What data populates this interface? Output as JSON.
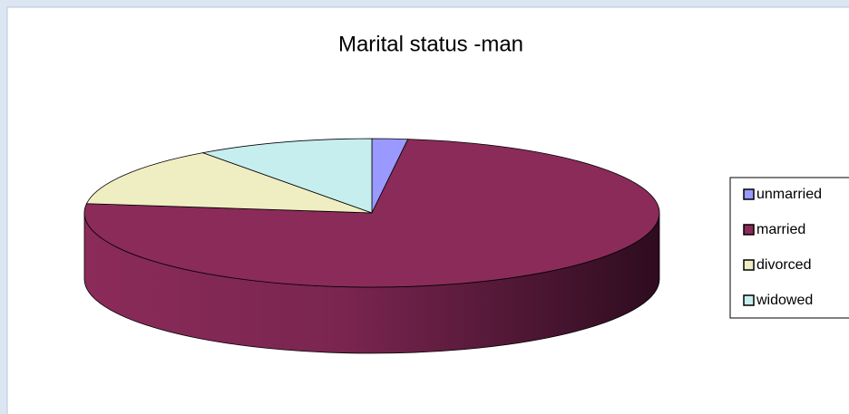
{
  "chart_data": {
    "type": "pie3d",
    "title": "Marital status -man",
    "categories": [
      "unmarried",
      "married",
      "divorced",
      "widowed"
    ],
    "values": [
      2,
      75,
      13,
      10
    ],
    "colors": [
      "#9999ff",
      "#8b2b5a",
      "#efedc2",
      "#c6eeee"
    ],
    "legend": "right"
  }
}
